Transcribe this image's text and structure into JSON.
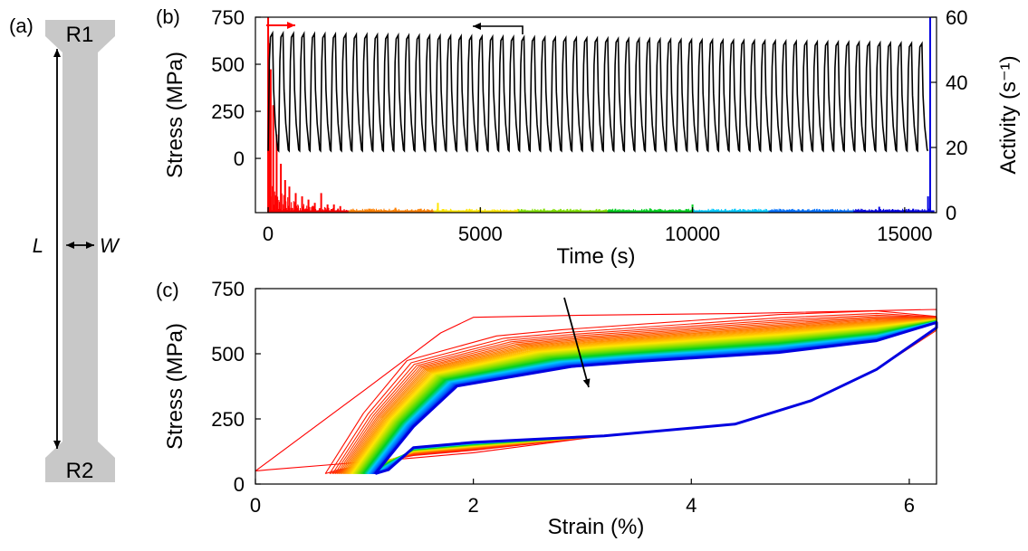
{
  "specimen": {
    "panel_label": "(a)",
    "top_label": "R1",
    "bottom_label": "R2",
    "length_label": "L",
    "width_label": "W"
  },
  "chart_data": [
    {
      "panel_label": "(b)",
      "type": "line",
      "xlabel": "Time (s)",
      "ylabel_left": "Stress (MPa)",
      "ylabel_right": "Activity (s⁻¹)",
      "xlim": [
        -300,
        15750
      ],
      "xticks": [
        0,
        5000,
        10000,
        15000
      ],
      "ylim_left": [
        -288,
        750
      ],
      "yticks_left": [
        0,
        250,
        500,
        750
      ],
      "ylim_right": [
        0,
        60
      ],
      "yticks_right": [
        0,
        20,
        40,
        60
      ],
      "grid": false,
      "stress_series": {
        "color": "#000000",
        "cycles": 63,
        "t_start": 0,
        "t_end": 15550,
        "min_stress": 40,
        "max_stress_first": 665,
        "max_stress_last": 610
      },
      "activity_series": {
        "segments": [
          {
            "t": [
              0,
              1900
            ],
            "color": "#ff0000"
          },
          {
            "t": [
              1900,
              3900
            ],
            "color": "#ff8000"
          },
          {
            "t": [
              3900,
              5900
            ],
            "color": "#ffe600"
          },
          {
            "t": [
              5900,
              8000
            ],
            "color": "#80e000"
          },
          {
            "t": [
              8000,
              10000
            ],
            "color": "#00d020"
          },
          {
            "t": [
              10000,
              11800
            ],
            "color": "#00c8ff"
          },
          {
            "t": [
              11800,
              13800
            ],
            "color": "#0070ff"
          },
          {
            "t": [
              13800,
              15700
            ],
            "color": "#0000e0"
          }
        ],
        "peaks": [
          {
            "t": 0,
            "v": 60
          },
          {
            "t": 20,
            "v": 52
          },
          {
            "t": 60,
            "v": 44
          },
          {
            "t": 120,
            "v": 33
          },
          {
            "t": 200,
            "v": 24
          },
          {
            "t": 300,
            "v": 15
          },
          {
            "t": 400,
            "v": 10
          },
          {
            "t": 500,
            "v": 8
          },
          {
            "t": 650,
            "v": 6
          },
          {
            "t": 800,
            "v": 5
          },
          {
            "t": 950,
            "v": 4
          },
          {
            "t": 1100,
            "v": 3
          },
          {
            "t": 1250,
            "v": 6
          },
          {
            "t": 1400,
            "v": 2.5
          },
          {
            "t": 1550,
            "v": 2.5
          },
          {
            "t": 1700,
            "v": 2
          },
          {
            "t": 2400,
            "v": 1.2
          },
          {
            "t": 3000,
            "v": 1.5
          },
          {
            "t": 3600,
            "v": 1.2
          },
          {
            "t": 4000,
            "v": 3
          },
          {
            "t": 5000,
            "v": 1.5
          },
          {
            "t": 6500,
            "v": 1.2
          },
          {
            "t": 7800,
            "v": 1
          },
          {
            "t": 9000,
            "v": 1.3
          },
          {
            "t": 10000,
            "v": 2.5
          },
          {
            "t": 11000,
            "v": 1.2
          },
          {
            "t": 12500,
            "v": 1
          },
          {
            "t": 14400,
            "v": 1.8
          },
          {
            "t": 15200,
            "v": 1.2
          },
          {
            "t": 15550,
            "v": 5
          },
          {
            "t": 15600,
            "v": 60
          }
        ]
      }
    },
    {
      "panel_label": "(c)",
      "type": "line",
      "xlabel": "Strain (%)",
      "ylabel": "Stress (MPa)",
      "xlim": [
        0,
        6.25
      ],
      "xticks": [
        0,
        2,
        4,
        6
      ],
      "ylim": [
        0,
        750
      ],
      "yticks": [
        0,
        250,
        500,
        750
      ],
      "grid": false,
      "cycles": 63,
      "first_cycle": {
        "start_strain": 0,
        "start_stress": 50,
        "peak_strain": 2.0,
        "peak_stress": 640
      },
      "last_cycle": {
        "start_strain": 1.1,
        "start_stress": 40,
        "loading_plateau": 470,
        "unloading_plateau": 170
      },
      "end_point": {
        "strain": 6.25,
        "stress": 600
      },
      "color_map": [
        "#ff0000",
        "#ff8000",
        "#ffe600",
        "#80e000",
        "#00d020",
        "#00c8ff",
        "#0070ff",
        "#0000e0"
      ]
    }
  ]
}
